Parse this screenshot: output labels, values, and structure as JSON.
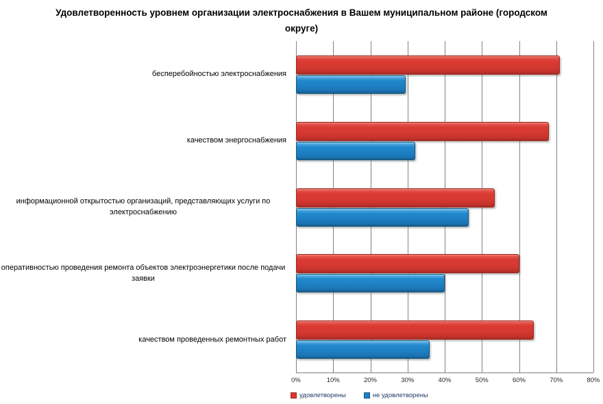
{
  "chart_data": {
    "type": "bar",
    "orientation": "horizontal",
    "title": "Удовлетворенность уровнем организации электроснабжения в Вашем муниципальном районе (городском округе)",
    "categories": [
      "бесперебойностью электроснабжения",
      "качеством энергоснабжения",
      "информационной открытостью организаций, представляющих услуги по электроснабжению",
      "оперативностью проведения ремонта объектов электроэнергетики после подачи заявки",
      "качеством проведенных ремонтных работ"
    ],
    "series": [
      {
        "name": "удовлетворены",
        "color": "#D93A32",
        "values": [
          71,
          68,
          53.5,
          60,
          64
        ]
      },
      {
        "name": "не удовлетворены",
        "color": "#1E80C4",
        "values": [
          29.5,
          32,
          46.5,
          40,
          36
        ]
      }
    ],
    "x_ticks": [
      "0%",
      "10%",
      "20%",
      "30%",
      "40%",
      "50%",
      "60%",
      "70%",
      "80%"
    ],
    "xlim": [
      0,
      80
    ],
    "grid": true,
    "legend_position": "bottom"
  },
  "colors": {
    "satisfied": "#D93A32",
    "not_satisfied": "#1E80C4",
    "gridline": "#808080",
    "axis_line": "#7F7F7F",
    "legend_text": "#1F3B66",
    "title_text": "#000000"
  }
}
